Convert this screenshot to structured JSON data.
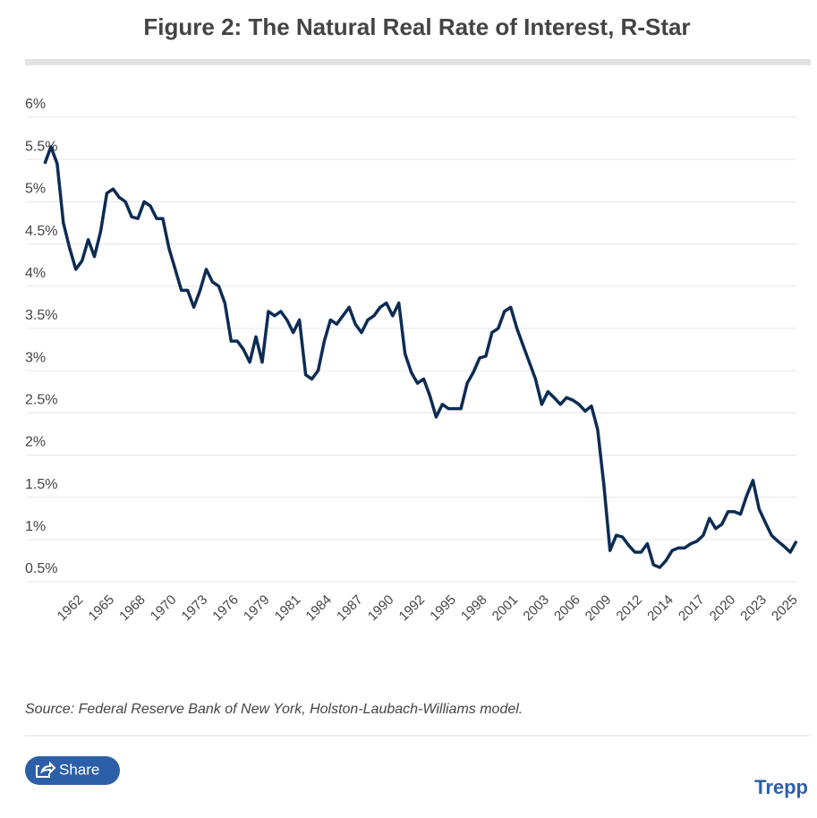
{
  "chart_data": {
    "type": "line",
    "title": "Figure 2: The Natural Real Rate of Interest, R-Star",
    "source": "Source: Federal Reserve Bank of New York, Holston-Laubach-Williams model.",
    "categories": [
      null,
      null,
      null,
      null,
      null,
      "1962",
      null,
      null,
      null,
      null,
      "1965",
      null,
      null,
      null,
      null,
      "1968",
      null,
      null,
      null,
      null,
      "1970",
      null,
      null,
      null,
      null,
      "1973",
      null,
      null,
      null,
      null,
      "1976",
      null,
      null,
      null,
      null,
      "1979",
      null,
      null,
      null,
      null,
      "1981",
      null,
      null,
      null,
      null,
      "1984",
      null,
      null,
      null,
      null,
      "1987",
      null,
      null,
      null,
      null,
      "1990",
      null,
      null,
      null,
      null,
      "1992",
      null,
      null,
      null,
      null,
      "1995",
      null,
      null,
      null,
      null,
      "1998",
      null,
      null,
      null,
      null,
      "2001",
      null,
      null,
      null,
      null,
      "2003",
      null,
      null,
      null,
      null,
      "2006",
      null,
      null,
      null,
      null,
      "2009",
      null,
      null,
      null,
      null,
      "2012",
      null,
      null,
      null,
      null,
      "2014",
      null,
      null,
      null,
      null,
      "2017",
      null,
      null,
      null,
      null,
      "2020",
      null,
      null,
      null,
      null,
      "2023",
      null,
      null,
      null,
      null,
      "2025",
      null
    ],
    "values": [
      5.45,
      5.65,
      5.45,
      4.75,
      4.45,
      4.2,
      4.3,
      4.55,
      4.35,
      4.65,
      5.1,
      5.15,
      5.05,
      5.0,
      4.82,
      4.8,
      5.0,
      4.95,
      4.8,
      4.8,
      4.45,
      4.2,
      3.95,
      3.95,
      3.75,
      3.95,
      4.2,
      4.05,
      4.0,
      3.8,
      3.35,
      3.35,
      3.25,
      3.1,
      3.4,
      3.1,
      3.7,
      3.65,
      3.7,
      3.6,
      3.45,
      3.6,
      2.95,
      2.9,
      3.0,
      3.35,
      3.6,
      3.55,
      3.65,
      3.75,
      3.55,
      3.45,
      3.6,
      3.65,
      3.75,
      3.8,
      3.65,
      3.8,
      3.2,
      2.98,
      2.85,
      2.9,
      2.7,
      2.45,
      2.6,
      2.55,
      2.55,
      2.55,
      2.85,
      2.98,
      3.15,
      3.17,
      3.45,
      3.5,
      3.7,
      3.75,
      3.5,
      3.3,
      3.1,
      2.9,
      2.6,
      2.75,
      2.68,
      2.6,
      2.68,
      2.65,
      2.6,
      2.52,
      2.58,
      2.3,
      1.65,
      0.87,
      1.05,
      1.03,
      0.93,
      0.85,
      0.85,
      0.95,
      0.7,
      0.67,
      0.75,
      0.87,
      0.9,
      0.9,
      0.95,
      0.98,
      1.05,
      1.25,
      1.13,
      1.18,
      1.33,
      1.33,
      1.3,
      1.52,
      1.7,
      1.36,
      1.2,
      1.05,
      0.98,
      0.92,
      0.85,
      0.98
    ],
    "color": "#0d2c54",
    "ylim": [
      0.5,
      6
    ],
    "yticks": [
      {
        "value": 0.5,
        "label": "0.5%"
      },
      {
        "value": 1,
        "label": "1%"
      },
      {
        "value": 1.5,
        "label": "1.5%"
      },
      {
        "value": 2,
        "label": "2%"
      },
      {
        "value": 2.5,
        "label": "2.5%"
      },
      {
        "value": 3,
        "label": "3%"
      },
      {
        "value": 3.5,
        "label": "3.5%"
      },
      {
        "value": 4,
        "label": "4%"
      },
      {
        "value": 4.5,
        "label": "4.5%"
      },
      {
        "value": 5,
        "label": "5%"
      },
      {
        "value": 5.5,
        "label": "5.5%"
      },
      {
        "value": 6,
        "label": "6%"
      }
    ],
    "grid": true
  },
  "page": {
    "share": "Share",
    "brand": "Trepp"
  }
}
